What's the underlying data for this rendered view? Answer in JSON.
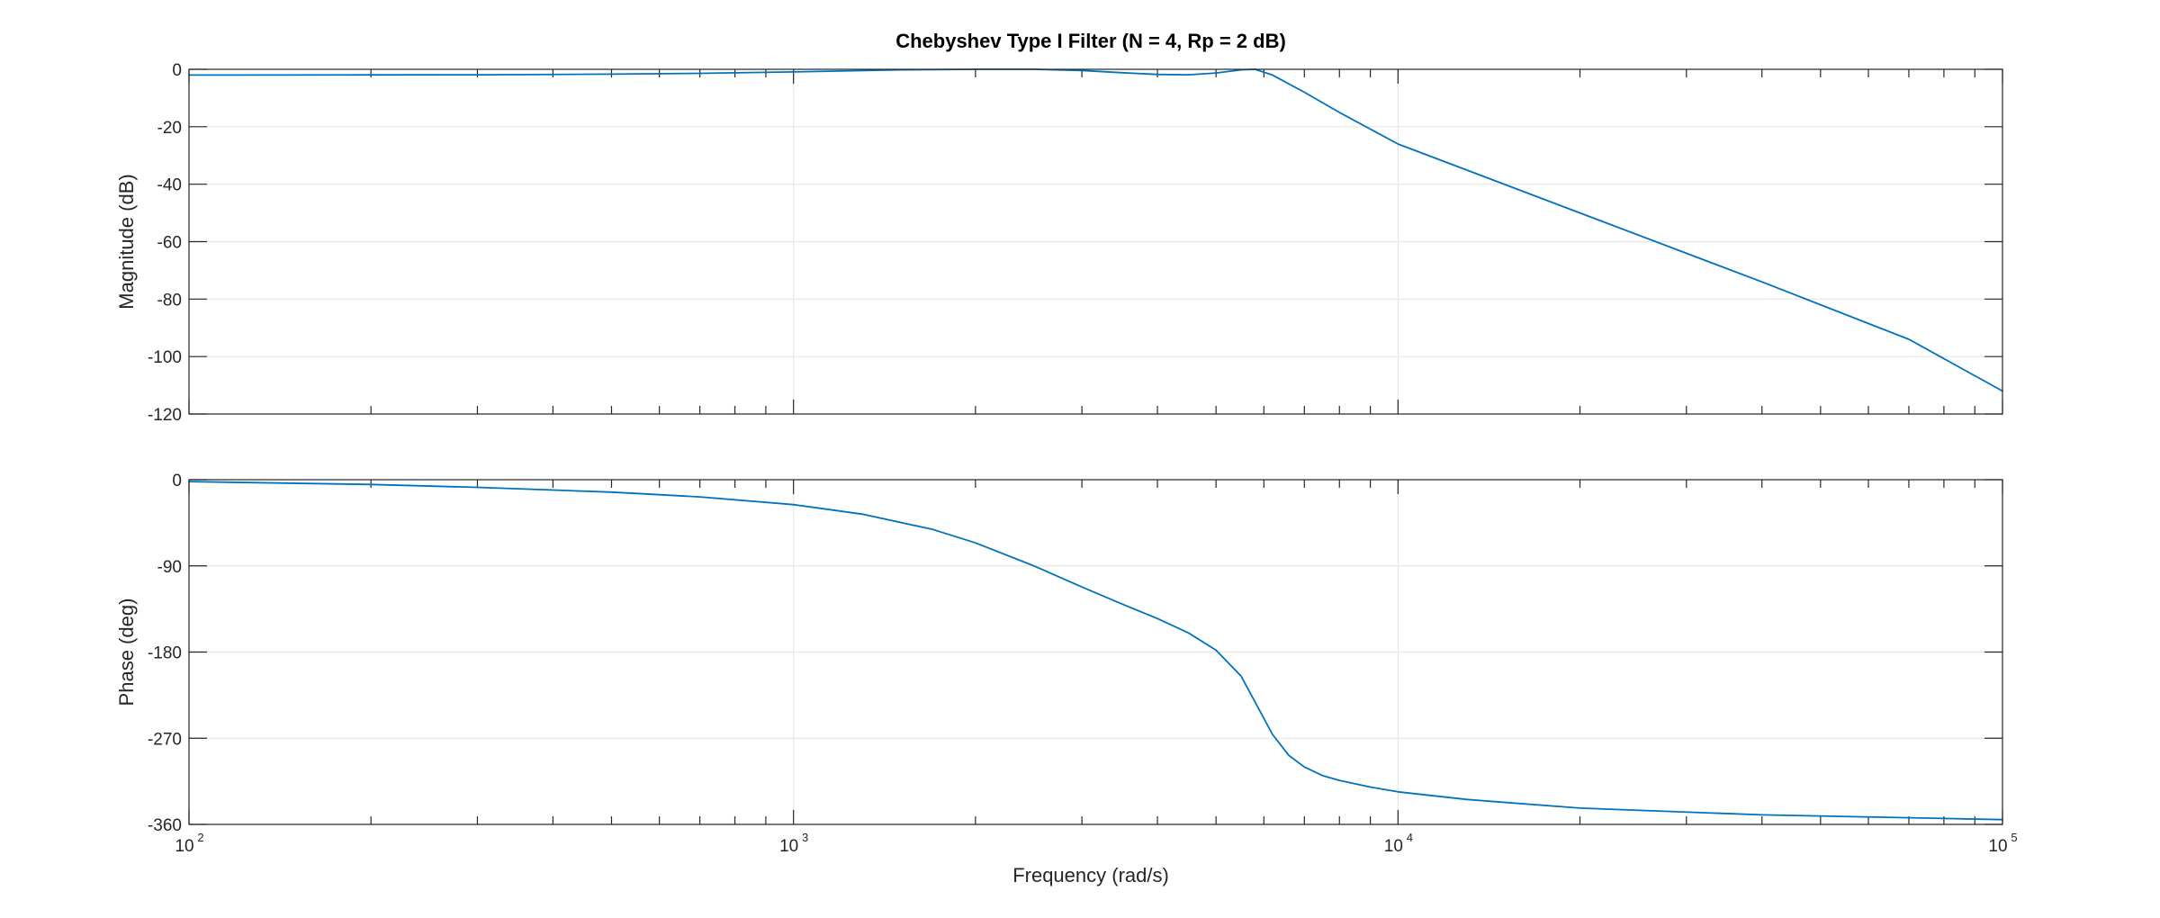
{
  "chart_data": {
    "type": "line",
    "title": "Chebyshev Type I Filter (N = 4, Rp = 2 dB)",
    "xlabel": "Frequency (rad/s)",
    "x_scale": "log",
    "xlim": [
      100,
      100000
    ],
    "x_ticks": [
      {
        "value": 100,
        "base": "10",
        "exp": "2"
      },
      {
        "value": 1000,
        "base": "10",
        "exp": "3"
      },
      {
        "value": 10000,
        "base": "10",
        "exp": "4"
      },
      {
        "value": 100000,
        "base": "10",
        "exp": "5"
      }
    ],
    "grid": true,
    "line_color": "#0072BD",
    "panels": [
      {
        "ylabel": "Magnitude (dB)",
        "ylim": [
          -120,
          0
        ],
        "y_ticks": [
          0,
          -20,
          -40,
          -60,
          -80,
          -100,
          -120
        ],
        "y_tick_labels": [
          "0",
          "-20",
          "-40",
          "-60",
          "-80",
          "-100",
          "-120"
        ],
        "series": [
          {
            "x": [
              100,
              200,
              300,
              500,
              700,
              1000,
              1500,
              2000,
              2500,
              3000,
              3500,
              4000,
              4500,
              5000,
              5500,
              5800,
              6200,
              7000,
              8000,
              10000,
              20000,
              40000,
              70000,
              100000
            ],
            "y": [
              -1.99,
              -1.95,
              -1.9,
              -1.7,
              -1.4,
              -0.9,
              -0.2,
              0.0,
              0.0,
              -0.4,
              -1.2,
              -1.8,
              -1.9,
              -1.3,
              -0.2,
              0.0,
              -2.0,
              -8.0,
              -15.0,
              -26.0,
              -50.0,
              -74.0,
              -94.0,
              -112.0
            ]
          }
        ]
      },
      {
        "ylabel": "Phase (deg)",
        "ylim": [
          -360,
          0
        ],
        "y_ticks": [
          0,
          -90,
          -180,
          -270,
          -360
        ],
        "y_tick_labels": [
          "0",
          "-90",
          "-180",
          "-270",
          "-360"
        ],
        "series": [
          {
            "x": [
              100,
              200,
              300,
              500,
              700,
              1000,
              1300,
              1700,
              2000,
              2500,
              3000,
              3500,
              4000,
              4500,
              5000,
              5500,
              5800,
              6200,
              6600,
              7000,
              7500,
              8000,
              9000,
              10000,
              13000,
              20000,
              40000,
              70000,
              100000
            ],
            "y": [
              -2,
              -5,
              -8,
              -13,
              -18,
              -26,
              -36,
              -52,
              -66,
              -90,
              -112,
              -130,
              -145,
              -160,
              -178,
              -205,
              -232,
              -266,
              -288,
              -300,
              -309,
              -314,
              -321,
              -326,
              -334,
              -343,
              -350,
              -353,
              -355
            ]
          }
        ]
      }
    ]
  }
}
